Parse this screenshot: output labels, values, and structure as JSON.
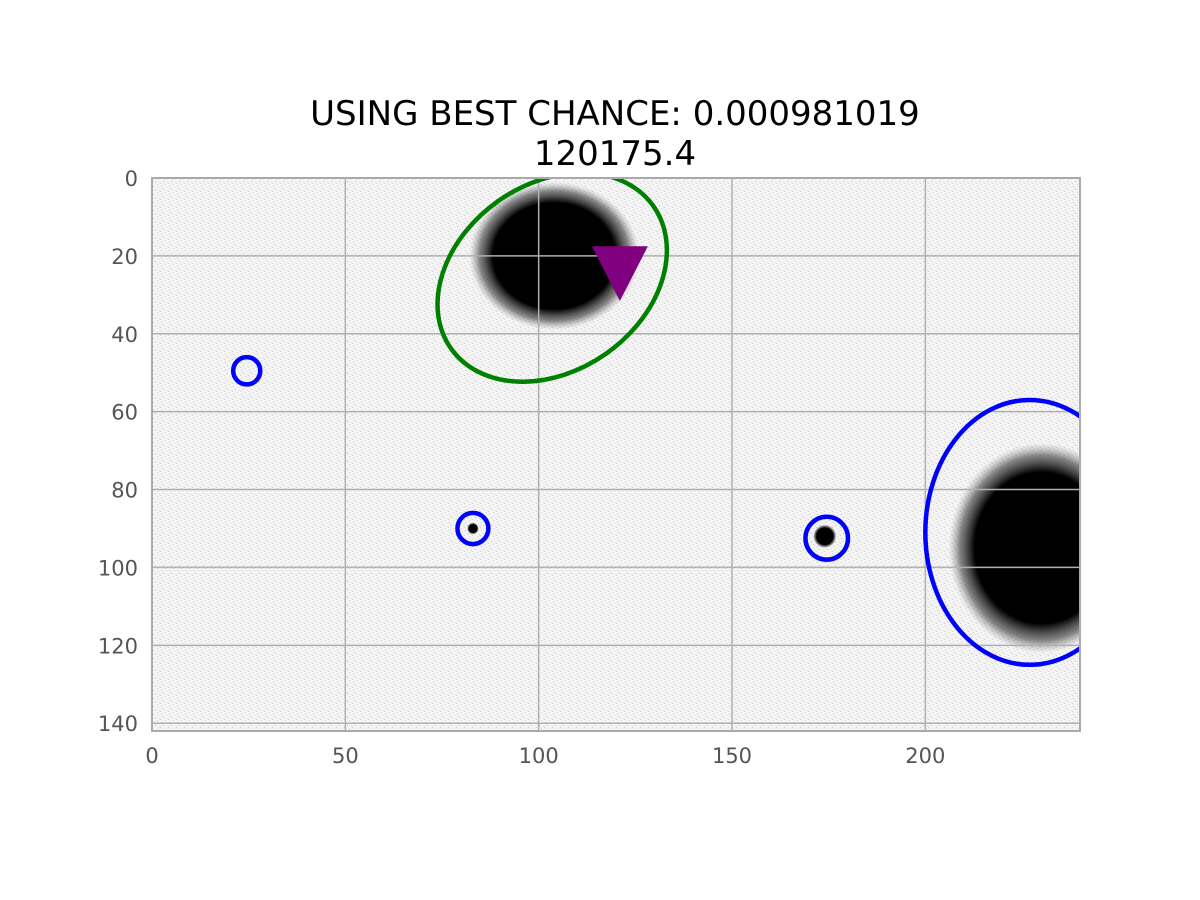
{
  "chart_data": {
    "type": "scatter",
    "title_line1": "USING BEST CHANCE: 0.000981019",
    "title_line2": "120175.4",
    "xlabel": "",
    "ylabel": "",
    "xlim": [
      0,
      240
    ],
    "ylim": [
      142,
      0
    ],
    "y_inverted": true,
    "grid": true,
    "xticks": [
      0,
      50,
      100,
      150,
      200
    ],
    "yticks": [
      0,
      20,
      40,
      60,
      80,
      100,
      120,
      140
    ],
    "colors": {
      "background": "#f3f3f3",
      "grid": "#b0b0b0",
      "spine": "#aaaaaa",
      "tick_text": "#555555",
      "host_ellipse": "#008000",
      "source_ellipse": "#0000ff",
      "marker": "#800080",
      "blob": "#000000"
    },
    "blobs": [
      {
        "cx": 104,
        "cy": 20,
        "rx": 22,
        "ry": 19
      },
      {
        "cx": 230,
        "cy": 95,
        "rx": 24,
        "ry": 27
      },
      {
        "cx": 174,
        "cy": 92,
        "rx": 3,
        "ry": 3
      },
      {
        "cx": 83,
        "cy": 90,
        "rx": 1.5,
        "ry": 1.5
      }
    ],
    "ellipses": [
      {
        "name": "green-host-ellipse",
        "color": "host_ellipse",
        "cx": 103.5,
        "cy": 25.5,
        "rx": 32,
        "ry": 24,
        "angle": -35
      },
      {
        "name": "blue-ellipse-large",
        "color": "source_ellipse",
        "cx": 227,
        "cy": 91,
        "rx": 27,
        "ry": 34,
        "angle": 0
      },
      {
        "name": "blue-circle-1",
        "color": "source_ellipse",
        "cx": 24.5,
        "cy": 49.5,
        "rx": 3.5,
        "ry": 3.5,
        "angle": 0
      },
      {
        "name": "blue-circle-2",
        "color": "source_ellipse",
        "cx": 83,
        "cy": 90,
        "rx": 4,
        "ry": 4,
        "angle": 0
      },
      {
        "name": "blue-circle-3",
        "color": "source_ellipse",
        "cx": 174.5,
        "cy": 92.5,
        "rx": 5.5,
        "ry": 5.5,
        "angle": 0
      }
    ],
    "markers": [
      {
        "name": "best-chance-marker",
        "shape": "triangle-down",
        "x": 121,
        "y": 24
      }
    ]
  }
}
